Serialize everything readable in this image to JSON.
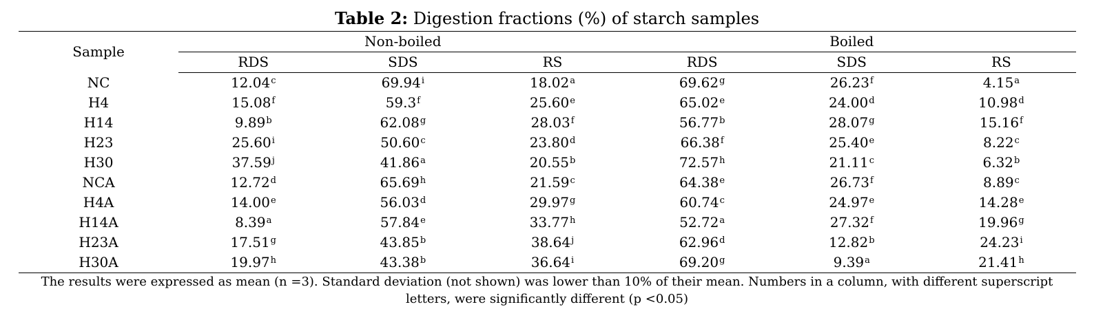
{
  "title": {
    "label": "Table 2:",
    "text": " Digestion fractions (%) of starch samples"
  },
  "table": {
    "sample_header": "Sample",
    "groups": [
      "Non-boiled",
      "Boiled"
    ],
    "subheaders": [
      "RDS",
      "SDS",
      "RS",
      "RDS",
      "SDS",
      "RS"
    ],
    "rows": [
      {
        "sample": "NC",
        "cells": [
          [
            "12.04",
            "c"
          ],
          [
            "69.94",
            "i"
          ],
          [
            "18.02",
            "a"
          ],
          [
            "69.62",
            "g"
          ],
          [
            "26.23",
            "f"
          ],
          [
            "4.15",
            "a"
          ]
        ]
      },
      {
        "sample": "H4",
        "cells": [
          [
            "15.08",
            "f"
          ],
          [
            "59.3",
            "f"
          ],
          [
            "25.60",
            "e"
          ],
          [
            "65.02",
            "e"
          ],
          [
            "24.00",
            "d"
          ],
          [
            "10.98",
            "d"
          ]
        ]
      },
      {
        "sample": "H14",
        "cells": [
          [
            "9.89",
            "b"
          ],
          [
            "62.08",
            "g"
          ],
          [
            "28.03",
            "f"
          ],
          [
            "56.77",
            "b"
          ],
          [
            "28.07",
            "g"
          ],
          [
            "15.16",
            "f"
          ]
        ]
      },
      {
        "sample": "H23",
        "cells": [
          [
            "25.60",
            "i"
          ],
          [
            "50.60",
            "c"
          ],
          [
            "23.80",
            "d"
          ],
          [
            "66.38",
            "f"
          ],
          [
            "25.40",
            "e"
          ],
          [
            "8.22",
            "c"
          ]
        ]
      },
      {
        "sample": "H30",
        "cells": [
          [
            "37.59",
            "j"
          ],
          [
            "41.86",
            "a"
          ],
          [
            "20.55",
            "b"
          ],
          [
            "72.57",
            "h"
          ],
          [
            "21.11",
            "c"
          ],
          [
            "6.32",
            "b"
          ]
        ]
      },
      {
        "sample": "NCA",
        "cells": [
          [
            "12.72",
            "d"
          ],
          [
            "65.69",
            "h"
          ],
          [
            "21.59",
            "c"
          ],
          [
            "64.38",
            "e"
          ],
          [
            "26.73",
            "f"
          ],
          [
            "8.89",
            "c"
          ]
        ]
      },
      {
        "sample": "H4A",
        "cells": [
          [
            "14.00",
            "e"
          ],
          [
            "56.03",
            "d"
          ],
          [
            "29.97",
            "g"
          ],
          [
            "60.74",
            "c"
          ],
          [
            "24.97",
            "e"
          ],
          [
            "14.28",
            "e"
          ]
        ]
      },
      {
        "sample": "H14A",
        "cells": [
          [
            "8.39",
            "a"
          ],
          [
            "57.84",
            "e"
          ],
          [
            "33.77",
            "h"
          ],
          [
            "52.72",
            "a"
          ],
          [
            "27.32",
            "f"
          ],
          [
            "19.96",
            "g"
          ]
        ]
      },
      {
        "sample": "H23A",
        "cells": [
          [
            "17.51",
            "g"
          ],
          [
            "43.85",
            "b"
          ],
          [
            "38.64",
            "j"
          ],
          [
            "62.96",
            "d"
          ],
          [
            "12.82",
            "b"
          ],
          [
            "24.23",
            "i"
          ]
        ]
      },
      {
        "sample": "H30A",
        "cells": [
          [
            "19.97",
            "h"
          ],
          [
            "43.38",
            "b"
          ],
          [
            "36.64",
            "i"
          ],
          [
            "69.20",
            "g"
          ],
          [
            "9.39",
            "a"
          ],
          [
            "21.41",
            "h"
          ]
        ]
      }
    ]
  },
  "footnote": {
    "line1": "The results were expressed as mean (n =3). Standard deviation (not shown) was lower than 10% of their mean. Numbers in a column, with different superscript",
    "line2": "letters, were significantly different (p <0.05)"
  }
}
